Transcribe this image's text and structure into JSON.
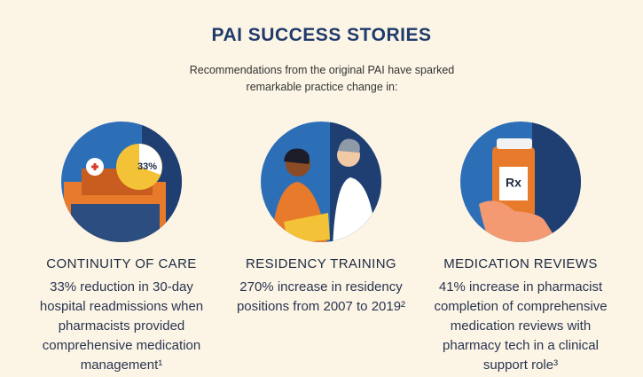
{
  "header": {
    "title": "PAI SUCCESS STORIES",
    "subtitle": "Recommendations from the original PAI have sparked remarkable practice change in:"
  },
  "items": [
    {
      "badge": "33%",
      "heading": "CONTINUITY OF CARE",
      "text": "33% reduction in 30-day hospital readmissions when pharmacists provided comprehensive medication management¹"
    },
    {
      "heading": "RESIDENCY TRAINING",
      "text": "270% increase in residency positions from 2007 to 2019²"
    },
    {
      "badge": "Rx",
      "heading": "MEDICATION REVIEWS",
      "text": "41% increase in pharmacist completion of comprehensive medication reviews with pharmacy tech in a clinical support role³"
    }
  ]
}
